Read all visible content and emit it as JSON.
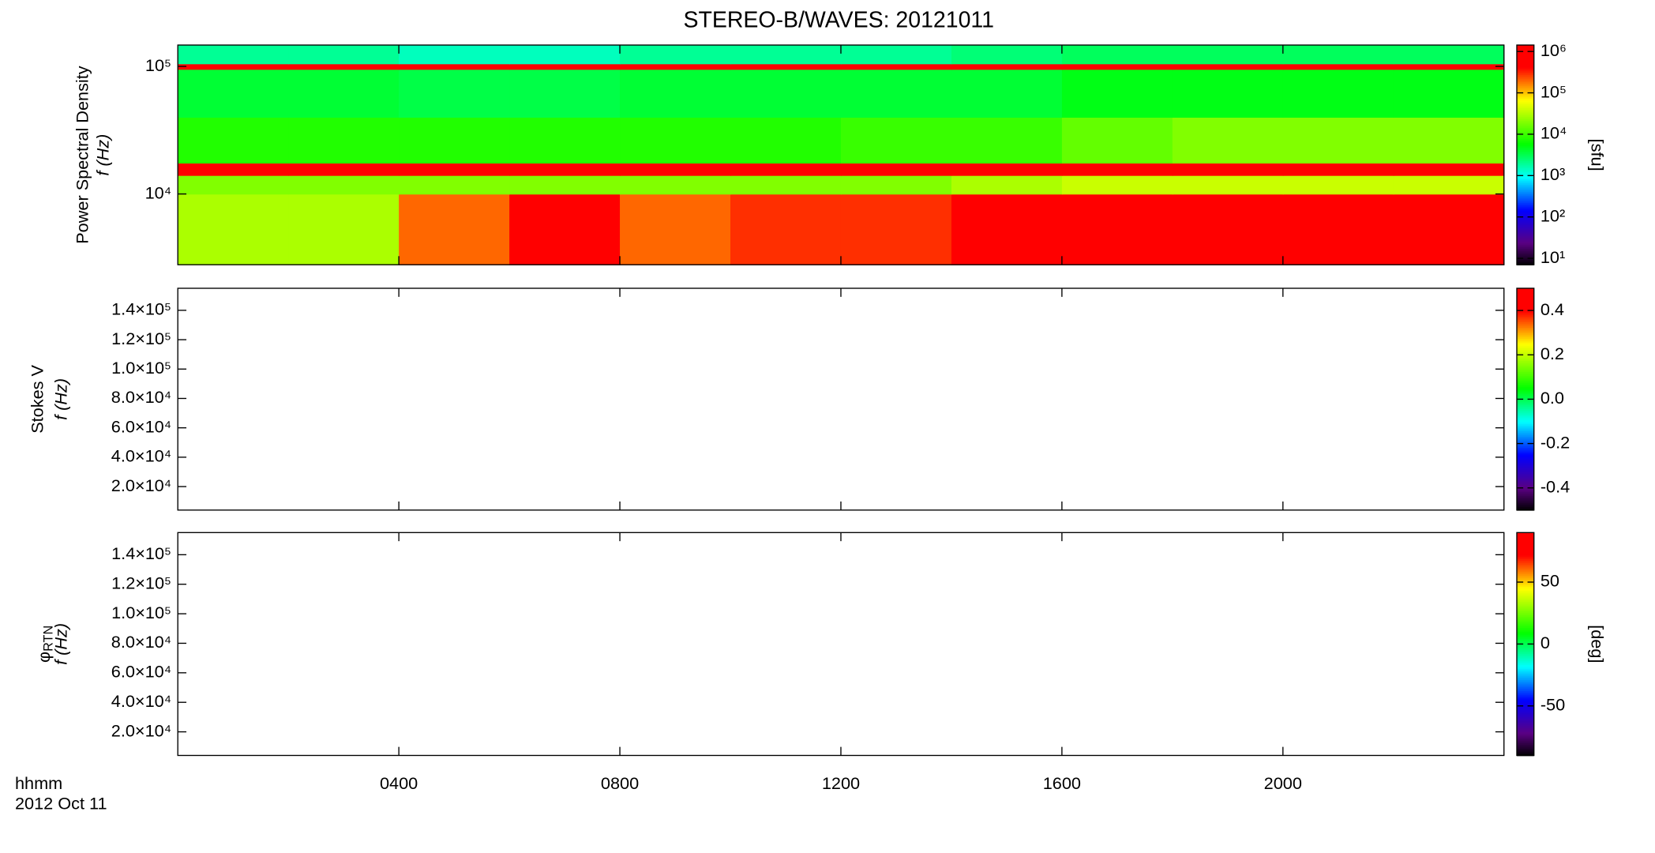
{
  "chart_data": [
    {
      "type": "heatmap",
      "title": "STEREO-B/WAVES: 20121011",
      "ylabel": "Power Spectral Density",
      "ylabel2": "f (Hz)",
      "log": true,
      "ylim": [
        2790,
        147000
      ],
      "yticks": [
        {
          "value": 10000,
          "label": "10⁴"
        },
        {
          "value": 100000,
          "label": "10⁵"
        }
      ],
      "xlim": [
        0,
        24
      ],
      "x_edges": [
        0,
        2,
        4,
        6,
        8,
        10,
        12,
        14,
        16,
        18,
        20,
        22,
        24
      ],
      "y_edges": [
        2790,
        10000,
        14000,
        17500,
        40000,
        95000,
        105000,
        147000
      ],
      "z": [
        [
          30000,
          30000,
          200000,
          500000,
          200000,
          300000,
          300000,
          500000,
          500000,
          800000,
          800000,
          800000
        ],
        [
          20000,
          20000,
          20000,
          20000,
          20000,
          20000,
          20000,
          30000,
          40000,
          40000,
          40000,
          40000
        ],
        [
          1000000,
          1000000,
          1000000,
          1000000,
          1000000,
          1000000,
          1000000,
          1000000,
          1000000,
          1000000,
          1000000,
          1000000
        ],
        [
          8000,
          8000,
          8000,
          8000,
          8000,
          8000,
          10000,
          10000,
          15000,
          20000,
          20000,
          20000
        ],
        [
          4000,
          4000,
          3500,
          3500,
          4000,
          4000,
          4000,
          4000,
          5000,
          5000,
          5000,
          5000
        ],
        [
          500000,
          500000,
          500000,
          500000,
          500000,
          500000,
          500000,
          500000,
          500000,
          500000,
          500000,
          500000
        ],
        [
          2000,
          2000,
          1500,
          1500,
          2000,
          2000,
          2000,
          2500,
          3000,
          3000,
          3000,
          3000
        ]
      ],
      "colormap": "rainbow",
      "colorbar": {
        "label": "[sfu]",
        "log": true,
        "clim": [
          7,
          1430000
        ],
        "ticks": [
          {
            "value": 10,
            "label": "10¹"
          },
          {
            "value": 100,
            "label": "10²"
          },
          {
            "value": 1000,
            "label": "10³"
          },
          {
            "value": 10000,
            "label": "10⁴"
          },
          {
            "value": 100000,
            "label": "10⁵"
          },
          {
            "value": 1000000,
            "label": "10⁶"
          }
        ]
      }
    },
    {
      "type": "heatmap",
      "ylabel": "Stokes V",
      "ylabel2": "f (Hz)",
      "log": false,
      "ylim": [
        4000,
        155000
      ],
      "yticks": [
        {
          "value": 20000,
          "label": "2.0×10⁴"
        },
        {
          "value": 40000,
          "label": "4.0×10⁴"
        },
        {
          "value": 60000,
          "label": "6.0×10⁴"
        },
        {
          "value": 80000,
          "label": "8.0×10⁴"
        },
        {
          "value": 100000,
          "label": "1.0×10⁵"
        },
        {
          "value": 120000,
          "label": "1.2×10⁵"
        },
        {
          "value": 140000,
          "label": "1.4×10⁵"
        }
      ],
      "xlim": [
        0,
        24
      ],
      "colormap": "rainbow",
      "colorbar": {
        "log": false,
        "clim": [
          -0.5,
          0.5
        ],
        "ticks": [
          -0.4,
          -0.2,
          {
            "value": 0,
            "label": "0.0"
          },
          0.2,
          0.4
        ]
      }
    },
    {
      "type": "heatmap",
      "ylabel_symbol": "φ",
      "ylabel_subscript": "RTN",
      "ylabel2": "f (Hz)",
      "log": false,
      "ylim": [
        4000,
        155000
      ],
      "yticks": [
        {
          "value": 20000,
          "label": "2.0×10⁴"
        },
        {
          "value": 40000,
          "label": "4.0×10⁴"
        },
        {
          "value": 60000,
          "label": "6.0×10⁴"
        },
        {
          "value": 80000,
          "label": "8.0×10⁴"
        },
        {
          "value": 100000,
          "label": "1.0×10⁵"
        },
        {
          "value": 120000,
          "label": "1.2×10⁵"
        },
        {
          "value": 140000,
          "label": "1.4×10⁵"
        }
      ],
      "xlim": [
        0,
        24
      ],
      "xticks": [
        {
          "value": 4,
          "label": "0400"
        },
        {
          "value": 8,
          "label": "0800"
        },
        {
          "value": 12,
          "label": "1200"
        },
        {
          "value": 16,
          "label": "1600"
        },
        {
          "value": 20,
          "label": "2000"
        }
      ],
      "xlabel": "hhmm",
      "date": "2012 Oct 11",
      "colormap": "rainbow",
      "colorbar": {
        "label": "[deg]",
        "log": false,
        "clim": [
          -90,
          90
        ],
        "ticks": [
          -50,
          0,
          50
        ]
      }
    }
  ]
}
